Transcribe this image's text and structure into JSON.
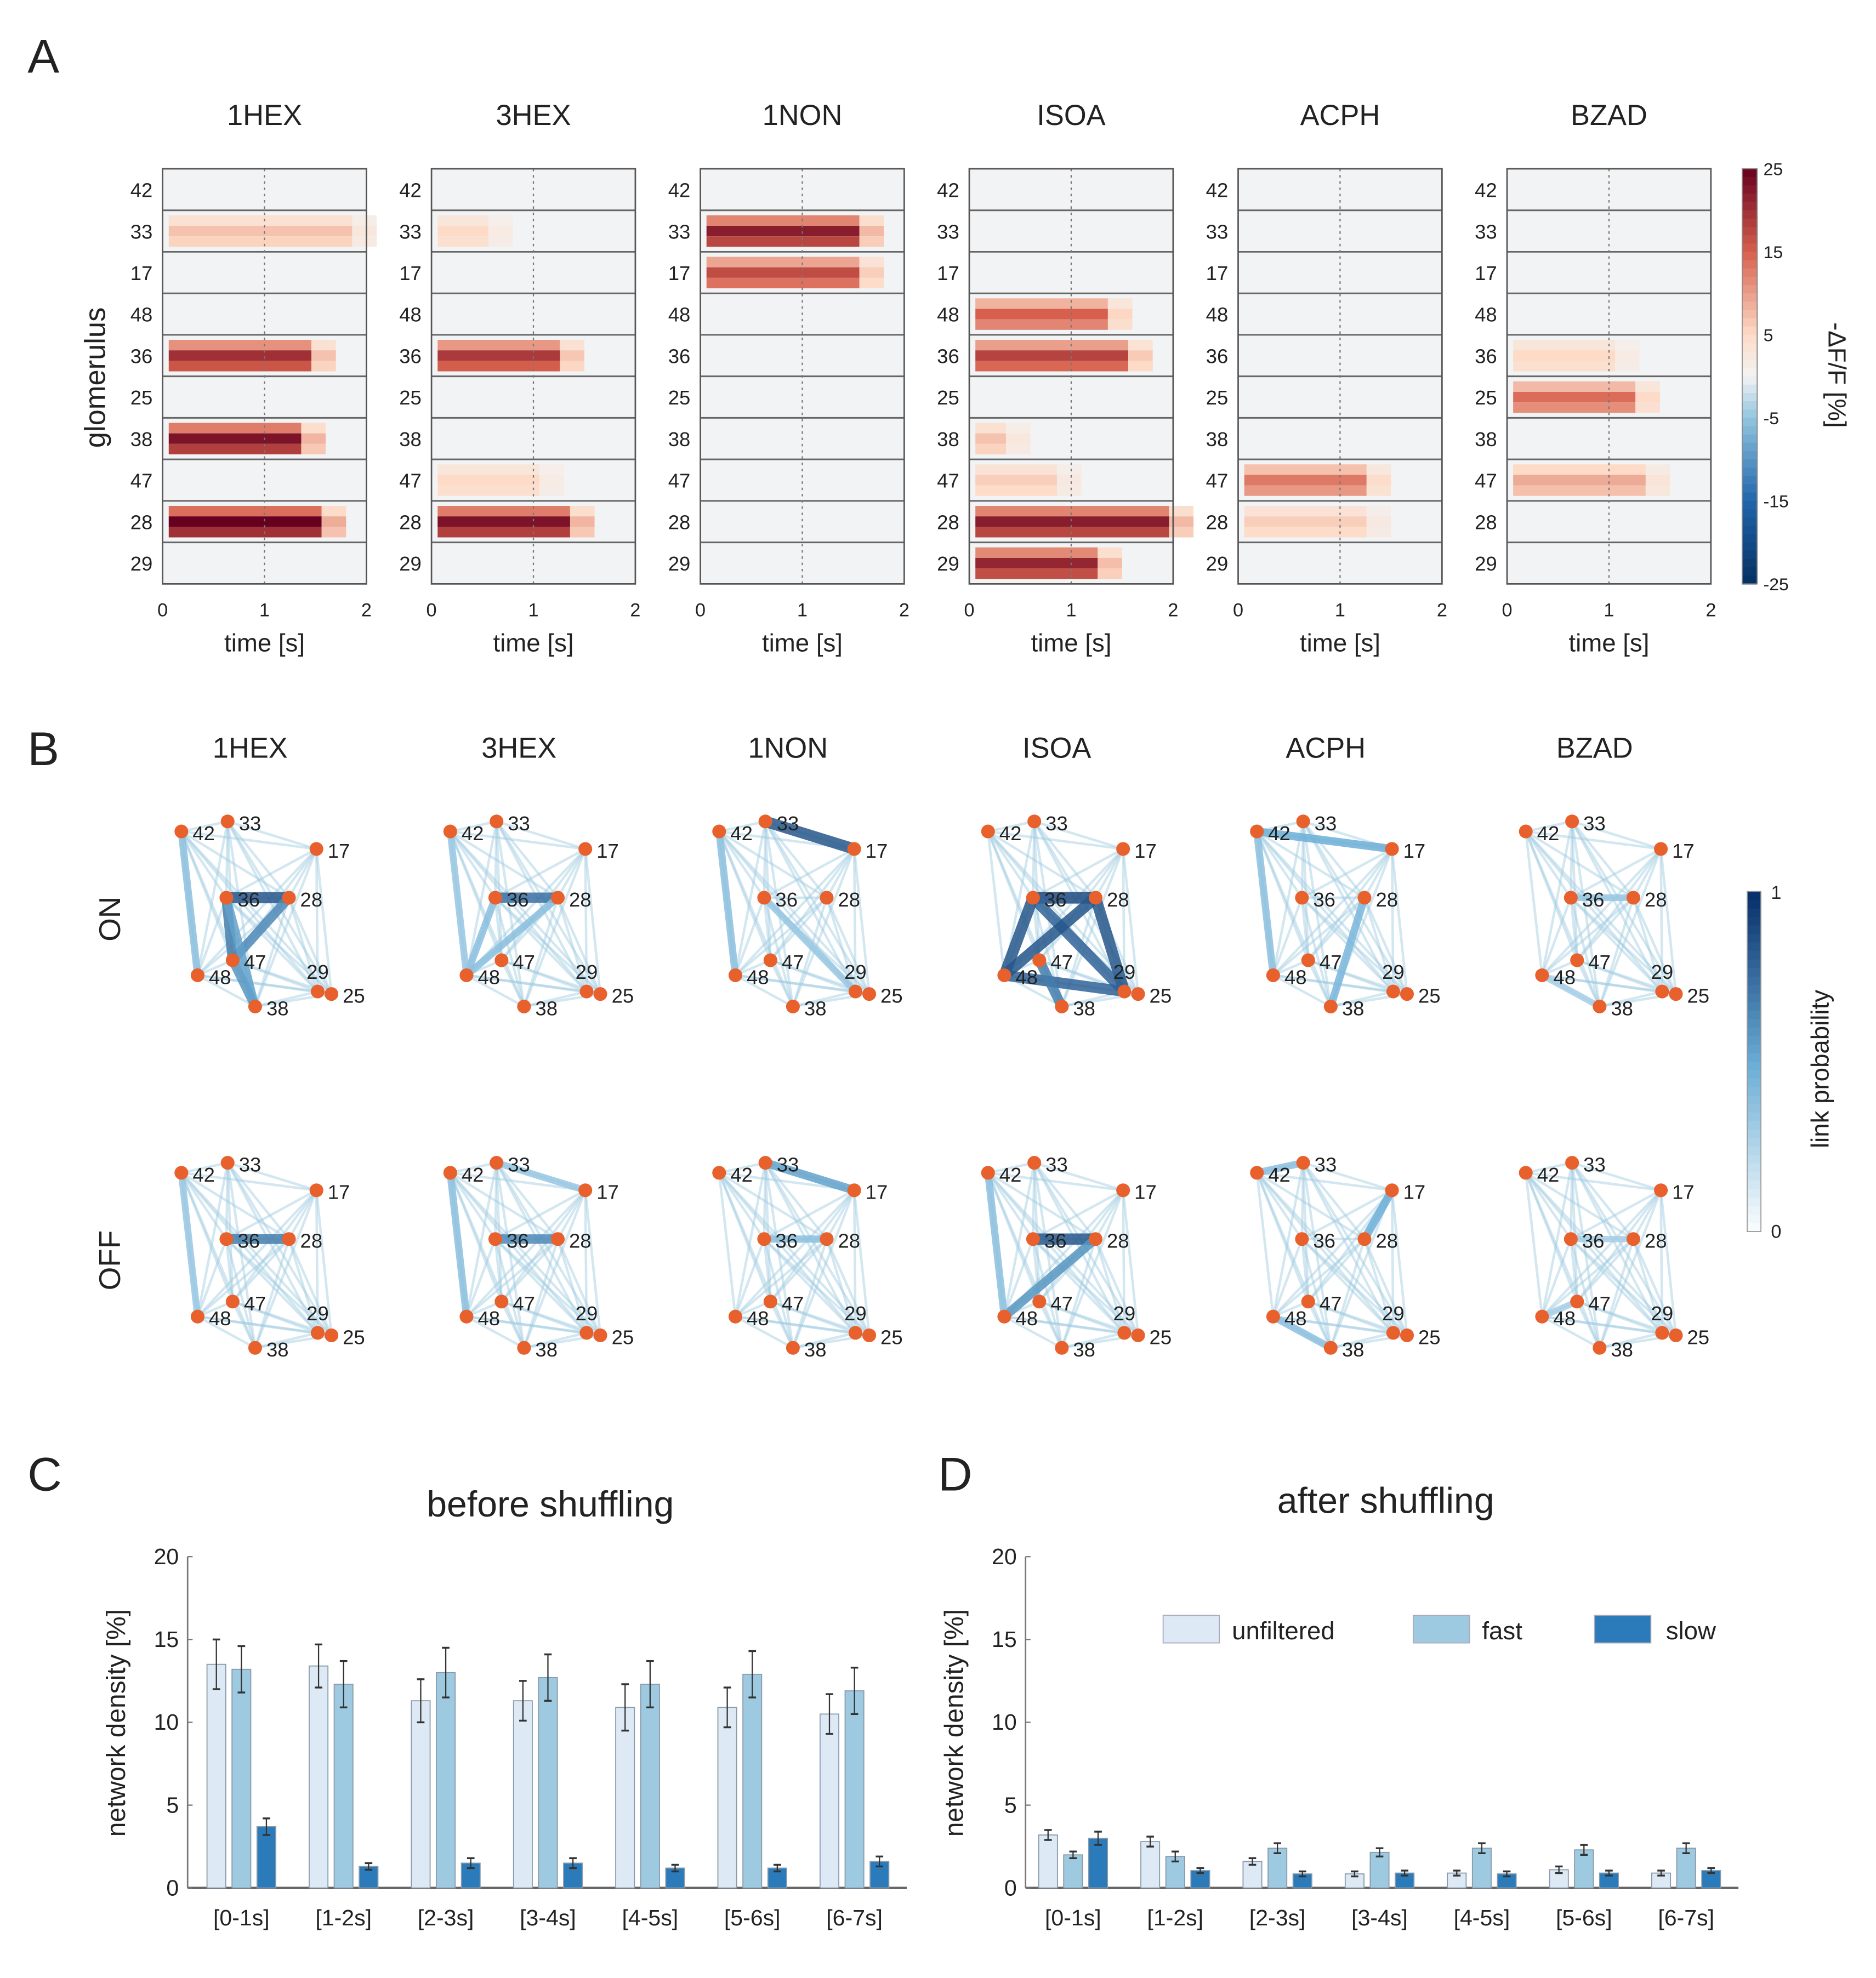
{
  "panels": {
    "A": "A",
    "B": "B",
    "C": "C",
    "D": "D"
  },
  "odors": [
    "1HEX",
    "3HEX",
    "1NON",
    "ISOA",
    "ACPH",
    "BZAD"
  ],
  "heatmap": {
    "glomeruli": [
      "42",
      "33",
      "17",
      "48",
      "36",
      "25",
      "38",
      "47",
      "28",
      "29"
    ],
    "ylabel": "glomerulus",
    "xlabel": "time [s]",
    "xticks": [
      "0",
      "1",
      "2"
    ],
    "colorbar": {
      "label": "-ΔF/F [%]",
      "ticks": [
        "25",
        "15",
        "5",
        "-5",
        "-15",
        "-25"
      ],
      "range": [
        -25,
        25
      ]
    },
    "responses": {
      "1HEX": [
        {
          "g": "33",
          "v": 7,
          "dur": 1.8
        },
        {
          "g": "36",
          "v": 20,
          "dur": 1.4
        },
        {
          "g": "38",
          "v": 23,
          "dur": 1.3
        },
        {
          "g": "28",
          "v": 25,
          "dur": 1.5
        }
      ],
      "3HEX": [
        {
          "g": "33",
          "v": 5,
          "dur": 0.5
        },
        {
          "g": "36",
          "v": 19,
          "dur": 1.2
        },
        {
          "g": "47",
          "v": 5,
          "dur": 1.0
        },
        {
          "g": "28",
          "v": 23,
          "dur": 1.3
        }
      ],
      "1NON": [
        {
          "g": "33",
          "v": 22,
          "dur": 1.5
        },
        {
          "g": "17",
          "v": 17,
          "dur": 1.5
        }
      ],
      "ISOA": [
        {
          "g": "48",
          "v": 15,
          "dur": 1.3
        },
        {
          "g": "36",
          "v": 18,
          "dur": 1.5
        },
        {
          "g": "38",
          "v": 7,
          "dur": 0.3
        },
        {
          "g": "47",
          "v": 6,
          "dur": 0.8
        },
        {
          "g": "28",
          "v": 22,
          "dur": 1.9
        },
        {
          "g": "29",
          "v": 21,
          "dur": 1.2
        }
      ],
      "ACPH": [
        {
          "g": "47",
          "v": 13,
          "dur": 1.2
        },
        {
          "g": "28",
          "v": 6,
          "dur": 1.2
        }
      ],
      "BZAD": [
        {
          "g": "36",
          "v": 5,
          "dur": 1.0
        },
        {
          "g": "25",
          "v": 14,
          "dur": 1.2
        },
        {
          "g": "47",
          "v": 9,
          "dur": 1.3
        }
      ]
    }
  },
  "network": {
    "rows": [
      "ON",
      "OFF"
    ],
    "nodes": [
      "33",
      "42",
      "17",
      "36",
      "28",
      "47",
      "48",
      "38",
      "29",
      "25"
    ],
    "node_color": "#e8612c",
    "colorbar": {
      "label": "link probability",
      "ticks": [
        "1",
        "0"
      ]
    },
    "links": {
      "ON": {
        "1HEX": [
          [
            "36",
            "28",
            0.85
          ],
          [
            "36",
            "47",
            0.7
          ],
          [
            "28",
            "47",
            0.65
          ],
          [
            "47",
            "38",
            0.6
          ],
          [
            "36",
            "38",
            0.55
          ],
          [
            "42",
            "48",
            0.4
          ]
        ],
        "3HEX": [
          [
            "36",
            "28",
            0.75
          ],
          [
            "36",
            "48",
            0.4
          ],
          [
            "28",
            "48",
            0.4
          ],
          [
            "42",
            "48",
            0.35
          ]
        ],
        "1NON": [
          [
            "33",
            "17",
            0.85
          ],
          [
            "42",
            "48",
            0.4
          ],
          [
            "36",
            "29",
            0.35
          ]
        ],
        "ISOA": [
          [
            "36",
            "28",
            0.9
          ],
          [
            "36",
            "48",
            0.85
          ],
          [
            "28",
            "29",
            0.85
          ],
          [
            "48",
            "29",
            0.8
          ],
          [
            "36",
            "29",
            0.8
          ],
          [
            "28",
            "48",
            0.85
          ],
          [
            "47",
            "38",
            0.7
          ]
        ],
        "ACPH": [
          [
            "42",
            "17",
            0.5
          ],
          [
            "28",
            "38",
            0.45
          ],
          [
            "42",
            "48",
            0.4
          ]
        ],
        "BZAD": [
          [
            "36",
            "28",
            0.35
          ],
          [
            "48",
            "38",
            0.3
          ]
        ]
      },
      "OFF": {
        "1HEX": [
          [
            "36",
            "28",
            0.7
          ],
          [
            "42",
            "48",
            0.35
          ]
        ],
        "3HEX": [
          [
            "36",
            "28",
            0.65
          ],
          [
            "42",
            "48",
            0.4
          ],
          [
            "33",
            "17",
            0.35
          ]
        ],
        "1NON": [
          [
            "33",
            "17",
            0.55
          ],
          [
            "36",
            "28",
            0.4
          ]
        ],
        "ISOA": [
          [
            "36",
            "28",
            0.85
          ],
          [
            "28",
            "48",
            0.6
          ],
          [
            "42",
            "48",
            0.4
          ]
        ],
        "ACPH": [
          [
            "17",
            "28",
            0.5
          ],
          [
            "48",
            "38",
            0.4
          ],
          [
            "42",
            "33",
            0.4
          ]
        ],
        "BZAD": [
          [
            "36",
            "28",
            0.3
          ],
          [
            "48",
            "47",
            0.3
          ]
        ]
      }
    }
  },
  "chart_data": [
    {
      "type": "bar",
      "title": "before shuffling",
      "xlabel": "",
      "ylabel": "network density [%]",
      "ylim": [
        0,
        20
      ],
      "yticks": [
        "0",
        "5",
        "10",
        "15",
        "20"
      ],
      "categories": [
        "[0-1s]",
        "[1-2s]",
        "[2-3s]",
        "[3-4s]",
        "[4-5s]",
        "[5-6s]",
        "[6-7s]"
      ],
      "series": [
        {
          "name": "unfiltered",
          "values": [
            13.5,
            13.4,
            11.3,
            11.3,
            10.9,
            10.9,
            10.5
          ],
          "errors": [
            1.5,
            1.3,
            1.3,
            1.2,
            1.4,
            1.2,
            1.2
          ]
        },
        {
          "name": "fast",
          "values": [
            13.2,
            12.3,
            13.0,
            12.7,
            12.3,
            12.9,
            11.9
          ],
          "errors": [
            1.4,
            1.4,
            1.5,
            1.4,
            1.4,
            1.4,
            1.4
          ]
        },
        {
          "name": "slow",
          "values": [
            3.7,
            1.3,
            1.5,
            1.5,
            1.2,
            1.2,
            1.6
          ],
          "errors": [
            0.5,
            0.2,
            0.3,
            0.3,
            0.2,
            0.2,
            0.3
          ]
        }
      ],
      "colors": [
        "#dde9f5",
        "#9ecae1",
        "#2b7bba"
      ]
    },
    {
      "type": "bar",
      "title": "after shuffling",
      "xlabel": "",
      "ylabel": "network density [%]",
      "ylim": [
        0,
        20
      ],
      "yticks": [
        "0",
        "5",
        "10",
        "15",
        "20"
      ],
      "categories": [
        "[0-1s]",
        "[1-2s]",
        "[2-3s]",
        "[3-4s]",
        "[4-5s]",
        "[5-6s]",
        "[6-7s]"
      ],
      "series": [
        {
          "name": "unfiltered",
          "values": [
            3.2,
            2.8,
            1.6,
            0.85,
            0.9,
            1.1,
            0.9
          ],
          "errors": [
            0.3,
            0.3,
            0.2,
            0.15,
            0.15,
            0.2,
            0.15
          ]
        },
        {
          "name": "fast",
          "values": [
            2.0,
            1.9,
            2.4,
            2.15,
            2.4,
            2.3,
            2.4
          ],
          "errors": [
            0.2,
            0.3,
            0.3,
            0.25,
            0.3,
            0.3,
            0.3
          ]
        },
        {
          "name": "slow",
          "values": [
            3.0,
            1.05,
            0.85,
            0.9,
            0.85,
            0.9,
            1.05
          ],
          "errors": [
            0.4,
            0.15,
            0.15,
            0.15,
            0.15,
            0.15,
            0.15
          ]
        }
      ],
      "colors": [
        "#dde9f5",
        "#9ecae1",
        "#2b7bba"
      ],
      "legend": {
        "placement": "top-right",
        "labels": [
          "unfiltered",
          "fast",
          "slow"
        ]
      }
    }
  ]
}
